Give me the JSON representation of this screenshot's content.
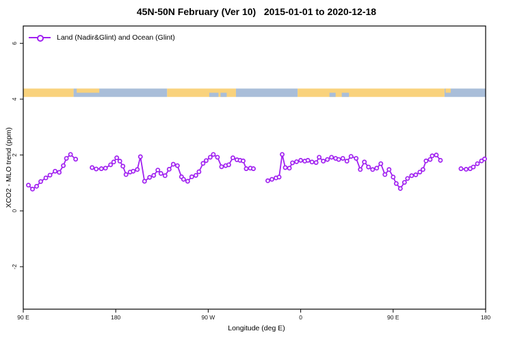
{
  "chart_data": {
    "type": "line",
    "title": "45N-50N February (Ver 10)   2015-01-01 to 2020-12-18",
    "xlabel": "Longitude (deg E)",
    "ylabel": "XCO2 - MLO trend (ppm)",
    "legend": {
      "position": "top-left",
      "entries": [
        {
          "label": "Land (Nadir&Glint) and Ocean (Glint)",
          "color": "#A020F0",
          "marker": "open-circle"
        }
      ]
    },
    "colors": {
      "series": "#A020F0",
      "marker_fill": "#ffffff",
      "land_band": "#F9D27C",
      "ocean_band": "#A9BED9",
      "axis": "#000000"
    },
    "x_axis": {
      "description": "longitude wrapping eastward from 90E; tick positions in degrees east of 90E",
      "range": [
        0,
        450
      ],
      "ticks": [
        {
          "pos": 0,
          "label": "90 E"
        },
        {
          "pos": 90,
          "label": "180"
        },
        {
          "pos": 180,
          "label": "90 W"
        },
        {
          "pos": 270,
          "label": "0"
        },
        {
          "pos": 360,
          "label": "90 E"
        },
        {
          "pos": 450,
          "label": "180"
        }
      ]
    },
    "y_axis": {
      "range": [
        -3.52,
        6.62
      ],
      "ticks": [
        {
          "value": -2,
          "label": "-2"
        },
        {
          "value": 0,
          "label": "0"
        },
        {
          "value": 2,
          "label": "2"
        },
        {
          "value": 4,
          "label": "4"
        },
        {
          "value": 6,
          "label": "6"
        }
      ]
    },
    "map_band": {
      "description": "land/ocean strip for the 45N-50N latitude band",
      "value_top": 4.38,
      "value_bottom": 4.08,
      "segments": [
        {
          "surface": "land",
          "from": 0,
          "to": 49
        },
        {
          "surface": "ocean",
          "from": 49,
          "to": 140
        },
        {
          "surface": "land",
          "from": 140,
          "to": 207
        },
        {
          "surface": "ocean",
          "from": 207,
          "to": 267
        },
        {
          "surface": "land",
          "from": 267,
          "to": 410
        },
        {
          "surface": "ocean",
          "from": 410,
          "to": 450
        }
      ],
      "details": [
        {
          "surface": "land",
          "from": 52,
          "to": 74,
          "half": "top"
        },
        {
          "surface": "ocean",
          "from": 181,
          "to": 190,
          "half": "bottom"
        },
        {
          "surface": "ocean",
          "from": 192,
          "to": 198,
          "half": "bottom"
        },
        {
          "surface": "ocean",
          "from": 298,
          "to": 304,
          "half": "bottom"
        },
        {
          "surface": "ocean",
          "from": 310,
          "to": 317,
          "half": "bottom"
        },
        {
          "surface": "land",
          "from": 411,
          "to": 416,
          "half": "top"
        }
      ]
    },
    "series": [
      {
        "name": "Land (Nadir&Glint) and Ocean (Glint)",
        "points_format": "[degrees east of 90E axis start, XCO2 - MLO trend (ppm)]",
        "segments": [
          [
            [
              5,
              0.92
            ],
            [
              9,
              0.78
            ],
            [
              13,
              0.88
            ],
            [
              17,
              1.05
            ],
            [
              22,
              1.18
            ],
            [
              26,
              1.28
            ],
            [
              31,
              1.42
            ],
            [
              35,
              1.38
            ],
            [
              39,
              1.62
            ],
            [
              42,
              1.88
            ],
            [
              46,
              2.02
            ],
            [
              51,
              1.85
            ]
          ],
          [
            [
              67,
              1.55
            ],
            [
              71,
              1.5
            ],
            [
              76,
              1.51
            ],
            [
              80,
              1.53
            ],
            [
              85,
              1.65
            ],
            [
              88,
              1.75
            ],
            [
              91,
              1.9
            ],
            [
              94,
              1.78
            ],
            [
              97,
              1.6
            ],
            [
              100,
              1.3
            ],
            [
              104,
              1.39
            ],
            [
              107,
              1.42
            ],
            [
              111,
              1.48
            ],
            [
              114,
              1.94
            ],
            [
              118,
              1.06
            ],
            [
              123,
              1.2
            ],
            [
              127,
              1.27
            ],
            [
              131,
              1.46
            ],
            [
              134,
              1.34
            ],
            [
              138,
              1.26
            ],
            [
              142,
              1.49
            ],
            [
              146,
              1.67
            ],
            [
              150,
              1.62
            ],
            [
              154,
              1.22
            ],
            [
              156,
              1.13
            ],
            [
              160,
              1.06
            ],
            [
              164,
              1.22
            ],
            [
              168,
              1.27
            ],
            [
              171,
              1.4
            ],
            [
              175,
              1.7
            ],
            [
              178,
              1.8
            ],
            [
              182,
              1.92
            ],
            [
              185,
              2.02
            ],
            [
              189,
              1.92
            ],
            [
              193,
              1.58
            ],
            [
              197,
              1.62
            ],
            [
              200,
              1.65
            ],
            [
              204,
              1.9
            ],
            [
              208,
              1.83
            ],
            [
              211,
              1.81
            ],
            [
              214,
              1.79
            ],
            [
              217,
              1.51
            ],
            [
              221,
              1.53
            ],
            [
              224,
              1.51
            ]
          ],
          [
            [
              238,
              1.08
            ],
            [
              242,
              1.13
            ],
            [
              246,
              1.18
            ],
            [
              249,
              1.21
            ],
            [
              252,
              2.02
            ],
            [
              255,
              1.55
            ],
            [
              259,
              1.53
            ],
            [
              262,
              1.72
            ],
            [
              266,
              1.76
            ],
            [
              270,
              1.81
            ],
            [
              274,
              1.78
            ],
            [
              277,
              1.81
            ],
            [
              281,
              1.75
            ],
            [
              285,
              1.73
            ],
            [
              288,
              1.92
            ],
            [
              292,
              1.78
            ],
            [
              296,
              1.84
            ],
            [
              300,
              1.92
            ],
            [
              304,
              1.88
            ],
            [
              307,
              1.84
            ],
            [
              311,
              1.88
            ],
            [
              315,
              1.78
            ],
            [
              319,
              1.95
            ],
            [
              324,
              1.88
            ],
            [
              328,
              1.48
            ],
            [
              332,
              1.75
            ],
            [
              336,
              1.57
            ],
            [
              340,
              1.48
            ],
            [
              344,
              1.53
            ],
            [
              348,
              1.69
            ],
            [
              352,
              1.3
            ],
            [
              356,
              1.48
            ],
            [
              360,
              1.21
            ],
            [
              363,
              0.98
            ],
            [
              367,
              0.8
            ],
            [
              371,
              1.02
            ],
            [
              374,
              1.16
            ],
            [
              378,
              1.26
            ],
            [
              382,
              1.29
            ],
            [
              386,
              1.39
            ],
            [
              389,
              1.48
            ],
            [
              392,
              1.79
            ],
            [
              396,
              1.84
            ],
            [
              398,
              1.97
            ],
            [
              402,
              2.0
            ],
            [
              406,
              1.81
            ]
          ],
          [
            [
              426,
              1.51
            ],
            [
              431,
              1.49
            ],
            [
              435,
              1.51
            ],
            [
              438,
              1.57
            ],
            [
              442,
              1.69
            ],
            [
              446,
              1.79
            ],
            [
              449,
              1.86
            ]
          ]
        ]
      }
    ]
  }
}
